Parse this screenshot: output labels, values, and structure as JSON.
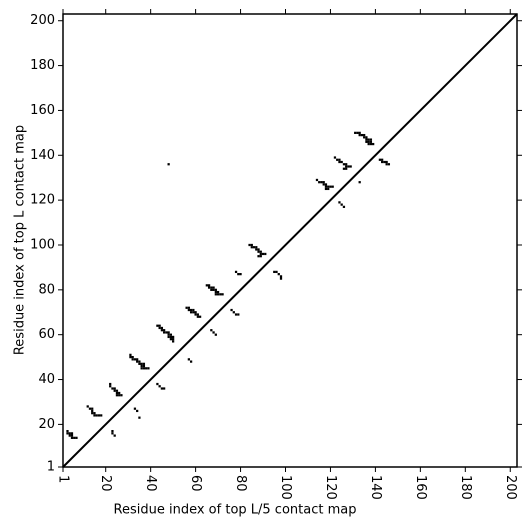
{
  "chart_data": {
    "type": "scatter",
    "xlabel": "Residue index of top L/5 contact map",
    "ylabel": "Residue index of top L contact map",
    "color": "#000000",
    "xlim": [
      1,
      203
    ],
    "ylim": [
      1,
      203
    ],
    "xticks": [
      1,
      20,
      40,
      60,
      80,
      100,
      120,
      140,
      160,
      180,
      200
    ],
    "yticks": [
      1,
      20,
      40,
      60,
      80,
      100,
      120,
      140,
      160,
      180,
      200
    ],
    "x": [
      3,
      3,
      4,
      5,
      4,
      5,
      5,
      6,
      7,
      12,
      13,
      14,
      14,
      14,
      15,
      15,
      16,
      17,
      18,
      22,
      22,
      23,
      24,
      24,
      25,
      25,
      26,
      25,
      26,
      27,
      23,
      23,
      24,
      31,
      31,
      32,
      32,
      33,
      34,
      34,
      35,
      35,
      36,
      36,
      37,
      37,
      37,
      38,
      39,
      36,
      33,
      34,
      35,
      43,
      44,
      44,
      45,
      45,
      46,
      46,
      47,
      48,
      48,
      49,
      49,
      50,
      50,
      50,
      48,
      49,
      43,
      44,
      45,
      46,
      48,
      56,
      57,
      57,
      58,
      58,
      59,
      60,
      60,
      61,
      61,
      62,
      59,
      57,
      58,
      65,
      66,
      66,
      67,
      67,
      68,
      68,
      69,
      69,
      69,
      70,
      70,
      71,
      72,
      67,
      68,
      69,
      76,
      77,
      78,
      79,
      78,
      79,
      80,
      84,
      85,
      85,
      86,
      87,
      87,
      88,
      88,
      89,
      89,
      88,
      89,
      90,
      91,
      95,
      96,
      97,
      98,
      98,
      114,
      115,
      116,
      117,
      117,
      118,
      118,
      119,
      120,
      121,
      118,
      119,
      122,
      123,
      124,
      124,
      125,
      126,
      127,
      127,
      128,
      126,
      127,
      129,
      124,
      125,
      126,
      131,
      132,
      133,
      133,
      134,
      135,
      135,
      136,
      136,
      137,
      138,
      138,
      137,
      137,
      138,
      139,
      136,
      133,
      142,
      143,
      143,
      144,
      145,
      145,
      146
    ],
    "values": [
      17,
      16,
      16,
      16,
      15,
      15,
      14,
      14,
      14,
      28,
      27,
      27,
      26,
      25,
      25,
      24,
      24,
      24,
      24,
      38,
      37,
      36,
      36,
      35,
      35,
      34,
      34,
      33,
      33,
      33,
      17,
      16,
      15,
      51,
      50,
      50,
      49,
      49,
      49,
      48,
      48,
      47,
      47,
      46,
      47,
      46,
      45,
      45,
      45,
      45,
      27,
      26,
      23,
      64,
      64,
      63,
      63,
      62,
      62,
      61,
      61,
      61,
      60,
      60,
      59,
      59,
      58,
      57,
      59,
      58,
      38,
      37,
      36,
      36,
      136,
      72,
      72,
      71,
      71,
      70,
      70,
      70,
      69,
      69,
      68,
      68,
      71,
      49,
      48,
      82,
      82,
      81,
      81,
      80,
      80,
      81,
      80,
      79,
      78,
      79,
      78,
      78,
      78,
      62,
      61,
      60,
      71,
      70,
      69,
      69,
      88,
      87,
      87,
      100,
      100,
      99,
      99,
      99,
      98,
      98,
      97,
      97,
      96,
      95,
      95,
      96,
      96,
      88,
      88,
      87,
      86,
      85,
      129,
      128,
      128,
      128,
      127,
      127,
      126,
      126,
      126,
      126,
      125,
      125,
      139,
      138,
      138,
      137,
      137,
      136,
      136,
      135,
      135,
      134,
      134,
      135,
      119,
      118,
      117,
      150,
      150,
      150,
      149,
      149,
      149,
      148,
      148,
      147,
      147,
      147,
      146,
      146,
      145,
      145,
      145,
      146,
      128,
      138,
      138,
      137,
      137,
      137,
      136,
      136
    ]
  }
}
